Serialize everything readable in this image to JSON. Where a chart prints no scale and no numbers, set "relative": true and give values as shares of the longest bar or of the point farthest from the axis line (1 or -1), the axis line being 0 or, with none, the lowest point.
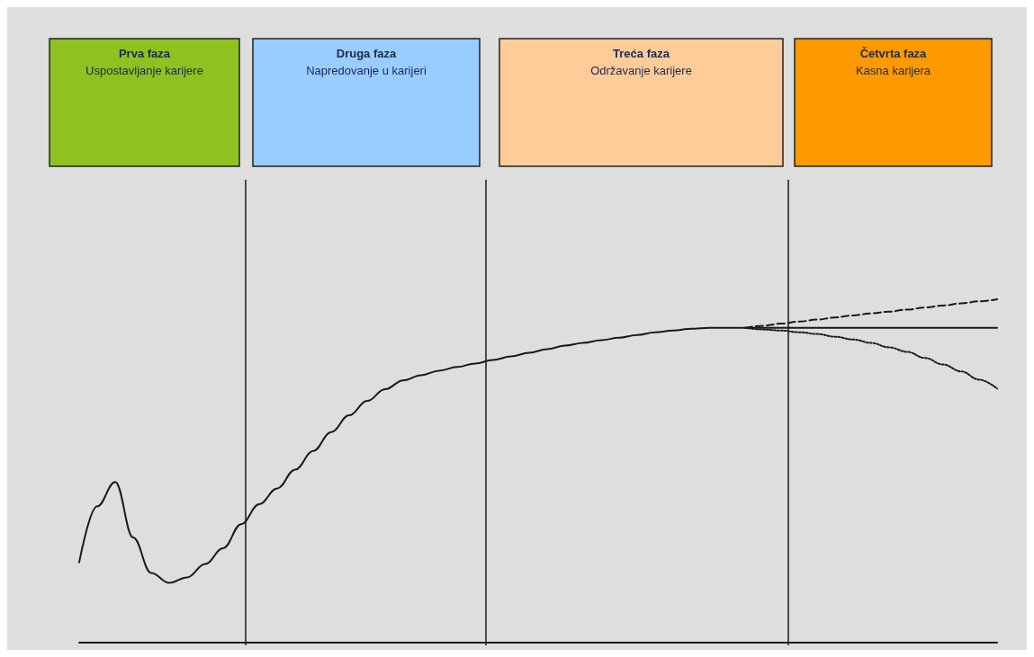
{
  "chart_data": {
    "type": "line",
    "relative": true,
    "categories": [
      null,
      null,
      null,
      null,
      null,
      null,
      null,
      null,
      null,
      null,
      null,
      null,
      null,
      null,
      null,
      null,
      null,
      null,
      null,
      null,
      null,
      null,
      null,
      null,
      null,
      null,
      null,
      null,
      null,
      null,
      null,
      null,
      null,
      null,
      null,
      null,
      null,
      null,
      null,
      null,
      null,
      null,
      null,
      null,
      null,
      null,
      null,
      null,
      null,
      null,
      null,
      null
    ],
    "series": [
      {
        "color": "#1a1a1a",
        "line_style": "solid",
        "values": [
          0.234,
          0.397,
          0.468,
          0.306,
          0.203,
          0.174,
          0.19,
          0.229,
          0.275,
          0.345,
          0.403,
          0.449,
          0.504,
          0.558,
          0.613,
          0.662,
          0.704,
          0.738,
          0.764,
          0.779,
          0.792,
          0.803,
          0.813,
          0.823,
          0.834,
          0.844,
          0.855,
          0.865,
          0.873,
          0.881,
          0.888,
          0.896,
          0.904,
          0.909,
          0.914,
          0.917,
          0.917,
          0.917,
          0.917,
          0.917,
          0.917,
          0.917,
          0.917,
          0.917,
          0.917,
          0.917,
          0.917,
          0.917,
          0.917,
          0.917,
          0.917,
          0.917
        ]
      },
      {
        "color": "#1a1a1a",
        "line_style": "dashed",
        "values": [
          null,
          null,
          null,
          null,
          null,
          null,
          null,
          null,
          null,
          null,
          null,
          null,
          null,
          null,
          null,
          null,
          null,
          null,
          null,
          null,
          null,
          null,
          null,
          null,
          null,
          null,
          null,
          null,
          null,
          null,
          null,
          null,
          null,
          null,
          null,
          null,
          null,
          0.917,
          0.923,
          0.929,
          0.935,
          0.941,
          0.947,
          0.953,
          0.959,
          0.964,
          0.97,
          0.976,
          0.982,
          0.988,
          0.994,
          1.0
        ]
      },
      {
        "color": "#1a1a1a",
        "line_style": "dotted",
        "values": [
          null,
          null,
          null,
          null,
          null,
          null,
          null,
          null,
          null,
          null,
          null,
          null,
          null,
          null,
          null,
          null,
          null,
          null,
          null,
          null,
          null,
          null,
          null,
          null,
          null,
          null,
          null,
          null,
          null,
          null,
          null,
          null,
          null,
          null,
          null,
          null,
          null,
          0.917,
          0.912,
          0.909,
          0.904,
          0.899,
          0.891,
          0.883,
          0.873,
          0.86,
          0.847,
          0.829,
          0.81,
          0.79,
          0.766,
          0.74
        ]
      }
    ],
    "annotations": [
      "Prva faza\nUspostavljanje karijere",
      "Druga faza\nNapredovanje u karijeri",
      "Treća faza\nOdržavanje karijere",
      "Četvrta faza\nKasna karijera"
    ],
    "grid": false,
    "marker": "none"
  }
}
